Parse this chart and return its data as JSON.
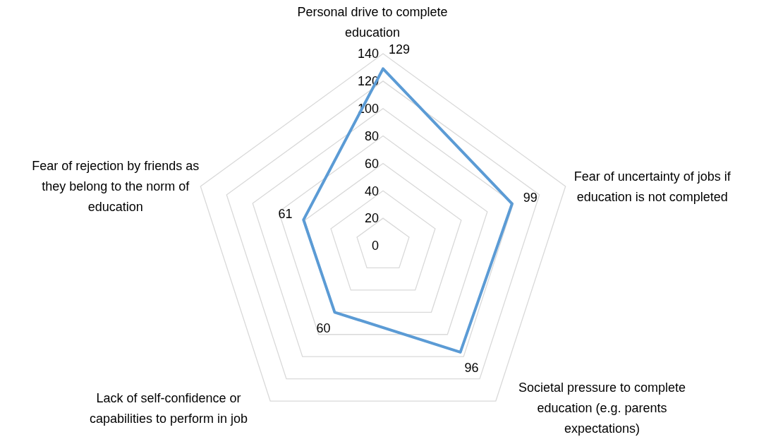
{
  "chart_data": {
    "type": "radar",
    "categories": [
      "Personal drive to complete education",
      "Fear of uncertainty of jobs if education is not completed",
      "Societal pressure to complete education (e.g. parents expectations)",
      "Lack of self-confidence or capabilities to perform in job",
      "Fear of rejection by friends as they belong to the norm of education"
    ],
    "series": [
      {
        "color": "#5b9bd5",
        "values": [
          129,
          99,
          96,
          60,
          61
        ]
      }
    ],
    "ylim": [
      0,
      140
    ],
    "yticks": [
      0,
      20,
      40,
      60,
      80,
      100,
      120,
      140
    ],
    "grid": true,
    "data_labels": true,
    "marker": "none",
    "line_style": "solid"
  }
}
